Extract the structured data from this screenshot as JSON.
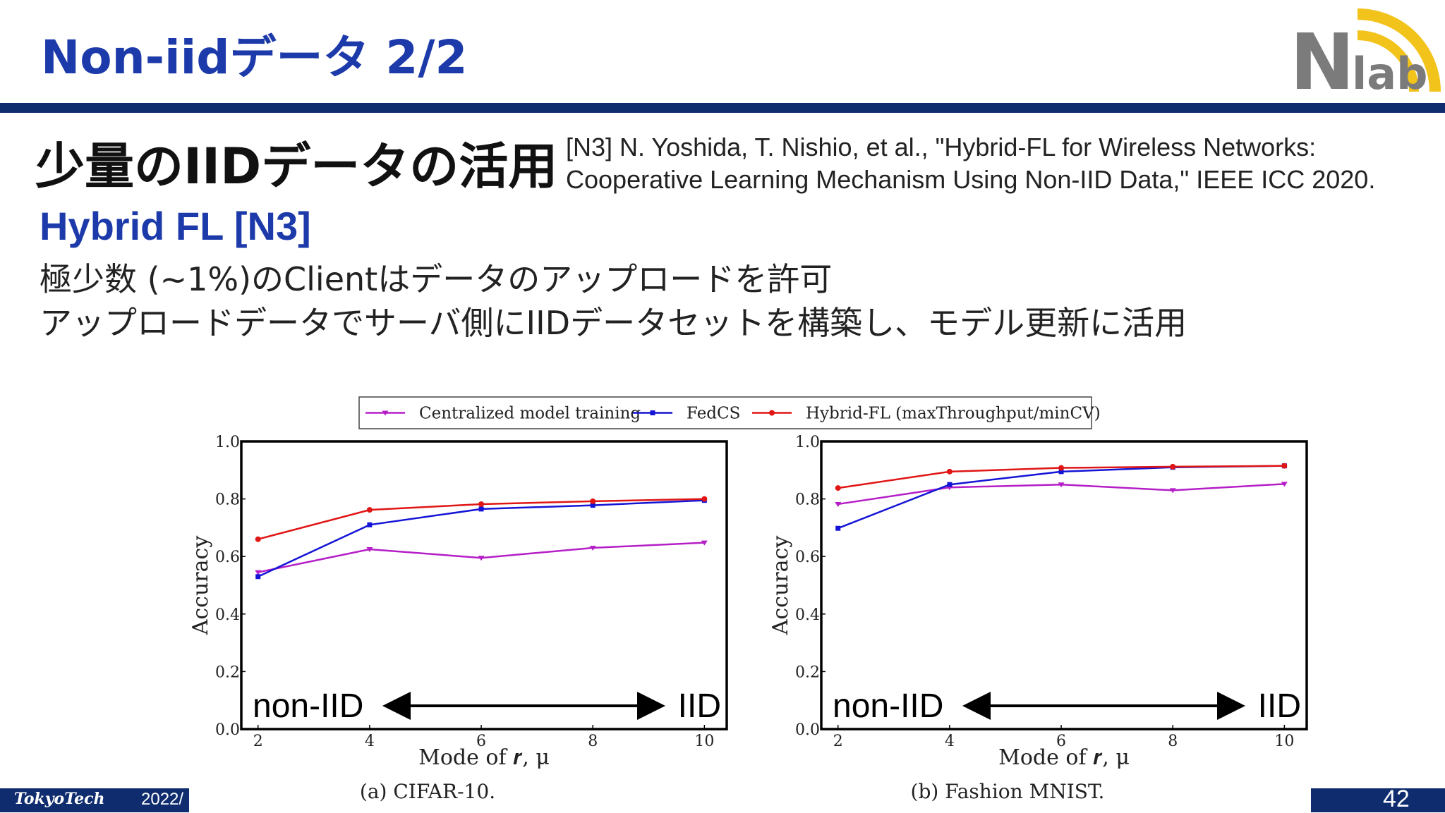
{
  "slide": {
    "title": "Non-iidデータ 2/2",
    "subtitle": "少量のIIDデータの活用",
    "reference_line1": "[N3] N. Yoshida, T. Nishio, et al., \"Hybrid-FL for Wireless Networks:",
    "reference_line2": "Cooperative Learning Mechanism Using Non-IID Data,\" IEEE ICC 2020.",
    "section_heading": "Hybrid FL [N3]",
    "desc_line1": "極少数 (~1%)のClientはデータのアップロードを許可",
    "desc_line2": "アップロードデータでサーバ側にIIDデータセットを構築し、モデル更新に活用"
  },
  "logo": {
    "icon": "nlab-wifi-logo",
    "text_n": "N",
    "text_lab": "lab"
  },
  "footer": {
    "brand": "TokyoTech",
    "year": "2022/",
    "page": "42"
  },
  "colors": {
    "title_blue": "#1c3aa9",
    "bar_navy": "#0f2d6e",
    "centralized": "#b51ec7",
    "fedcs": "#1414d6",
    "hybrid": "#e01515"
  },
  "chart_data": [
    {
      "type": "line",
      "caption": "(a) CIFAR-10.",
      "xlabel": "Mode of 𝒓, μ",
      "ylabel": "Accuracy",
      "x": [
        2,
        4,
        6,
        8,
        10
      ],
      "xticks": [
        2,
        4,
        6,
        8,
        10
      ],
      "yticks": [
        0.0,
        0.2,
        0.4,
        0.6,
        0.8,
        1.0
      ],
      "xlim": [
        1.7,
        10.4
      ],
      "ylim": [
        0.0,
        1.0
      ],
      "series": [
        {
          "name": "Centralized model training",
          "color": "#b51ec7",
          "marker": "triangle-down",
          "values": [
            0.545,
            0.625,
            0.595,
            0.63,
            0.648
          ]
        },
        {
          "name": "FedCS",
          "color": "#1414d6",
          "marker": "square",
          "values": [
            0.53,
            0.71,
            0.765,
            0.778,
            0.795
          ]
        },
        {
          "name": "Hybrid-FL (maxThroughput/minCV)",
          "color": "#e01515",
          "marker": "circle",
          "values": [
            0.66,
            0.762,
            0.782,
            0.792,
            0.8
          ]
        }
      ],
      "annotation": {
        "left": "non-IID",
        "right": "IID"
      }
    },
    {
      "type": "line",
      "caption": "(b) Fashion MNIST.",
      "xlabel": "Mode of 𝒓, μ",
      "ylabel": "Accuracy",
      "x": [
        2,
        4,
        6,
        8,
        10
      ],
      "xticks": [
        2,
        4,
        6,
        8,
        10
      ],
      "yticks": [
        0.0,
        0.2,
        0.4,
        0.6,
        0.8,
        1.0
      ],
      "xlim": [
        1.7,
        10.4
      ],
      "ylim": [
        0.0,
        1.0
      ],
      "series": [
        {
          "name": "Centralized model training",
          "color": "#b51ec7",
          "marker": "triangle-down",
          "values": [
            0.782,
            0.84,
            0.85,
            0.83,
            0.852
          ]
        },
        {
          "name": "FedCS",
          "color": "#1414d6",
          "marker": "square",
          "values": [
            0.698,
            0.85,
            0.895,
            0.91,
            0.915
          ]
        },
        {
          "name": "Hybrid-FL (maxThroughput/minCV)",
          "color": "#e01515",
          "marker": "circle",
          "values": [
            0.838,
            0.895,
            0.908,
            0.912,
            0.915
          ]
        }
      ],
      "annotation": {
        "left": "non-IID",
        "right": "IID"
      }
    }
  ],
  "legend": [
    "Centralized model training",
    "FedCS",
    "Hybrid-FL (maxThroughput/minCV)"
  ]
}
